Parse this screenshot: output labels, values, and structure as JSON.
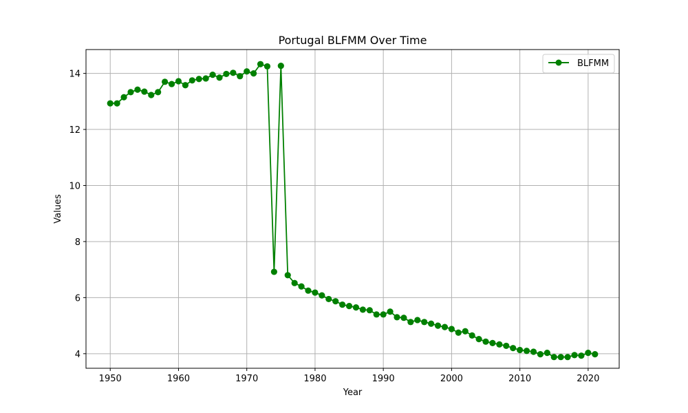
{
  "chart_data": {
    "type": "line",
    "title": "Portugal BLFMM Over Time",
    "xlabel": "Year",
    "ylabel": "Values",
    "xlim": [
      1946.45,
      2024.55
    ],
    "ylim": [
      3.48,
      14.85
    ],
    "xticks": [
      1950,
      1960,
      1970,
      1980,
      1990,
      2000,
      2010,
      2020
    ],
    "yticks": [
      4,
      6,
      8,
      10,
      12,
      14
    ],
    "grid": true,
    "legend_position": "top-right",
    "series": [
      {
        "name": "BLFMM",
        "color": "#008000",
        "marker": "circle",
        "x": [
          1950,
          1951,
          1952,
          1953,
          1954,
          1955,
          1956,
          1957,
          1958,
          1959,
          1960,
          1961,
          1962,
          1963,
          1964,
          1965,
          1966,
          1967,
          1968,
          1969,
          1970,
          1971,
          1972,
          1973,
          1974,
          1975,
          1976,
          1977,
          1978,
          1979,
          1980,
          1981,
          1982,
          1983,
          1984,
          1985,
          1986,
          1987,
          1988,
          1989,
          1990,
          1991,
          1992,
          1993,
          1994,
          1995,
          1996,
          1997,
          1998,
          1999,
          2000,
          2001,
          2002,
          2003,
          2004,
          2005,
          2006,
          2007,
          2008,
          2009,
          2010,
          2011,
          2012,
          2013,
          2014,
          2015,
          2016,
          2017,
          2018,
          2019,
          2020,
          2021
        ],
        "values": [
          12.93,
          12.93,
          13.15,
          13.33,
          13.42,
          13.35,
          13.23,
          13.33,
          13.7,
          13.62,
          13.72,
          13.58,
          13.75,
          13.8,
          13.82,
          13.95,
          13.85,
          13.98,
          14.02,
          13.9,
          14.07,
          14.0,
          14.33,
          14.25,
          6.92,
          14.27,
          6.8,
          6.52,
          6.4,
          6.25,
          6.18,
          6.08,
          5.95,
          5.87,
          5.75,
          5.7,
          5.65,
          5.57,
          5.55,
          5.4,
          5.4,
          5.5,
          5.3,
          5.28,
          5.13,
          5.2,
          5.13,
          5.07,
          5.0,
          4.95,
          4.88,
          4.75,
          4.8,
          4.65,
          4.52,
          4.43,
          4.38,
          4.33,
          4.28,
          4.2,
          4.13,
          4.1,
          4.07,
          3.98,
          4.03,
          3.88,
          3.88,
          3.88,
          3.95,
          3.93,
          4.03,
          3.98
        ]
      }
    ]
  }
}
